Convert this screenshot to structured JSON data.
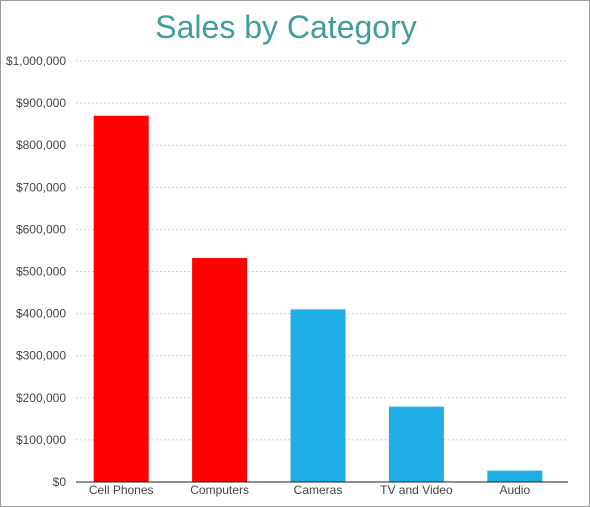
{
  "chart_data": {
    "type": "bar",
    "title": "Sales by Category",
    "xlabel": "",
    "ylabel": "",
    "categories": [
      "Cell Phones",
      "Computers",
      "Cameras",
      "TV and Video",
      "Audio"
    ],
    "values": [
      870000,
      532000,
      410000,
      179000,
      27000
    ],
    "bar_colors": [
      "#ff0000",
      "#ff0000",
      "#1eaee5",
      "#1eaee5",
      "#1eaee5"
    ],
    "ylim": [
      0,
      1000000
    ],
    "y_ticks": [
      0,
      100000,
      200000,
      300000,
      400000,
      500000,
      600000,
      700000,
      800000,
      900000,
      1000000
    ],
    "y_tick_labels": [
      "$0",
      "$100,000",
      "$200,000",
      "$300,000",
      "$400,000",
      "$500,000",
      "$600,000",
      "$700,000",
      "$800,000",
      "$900,000",
      "$1,000,000"
    ],
    "grid": true,
    "legend": "none"
  }
}
